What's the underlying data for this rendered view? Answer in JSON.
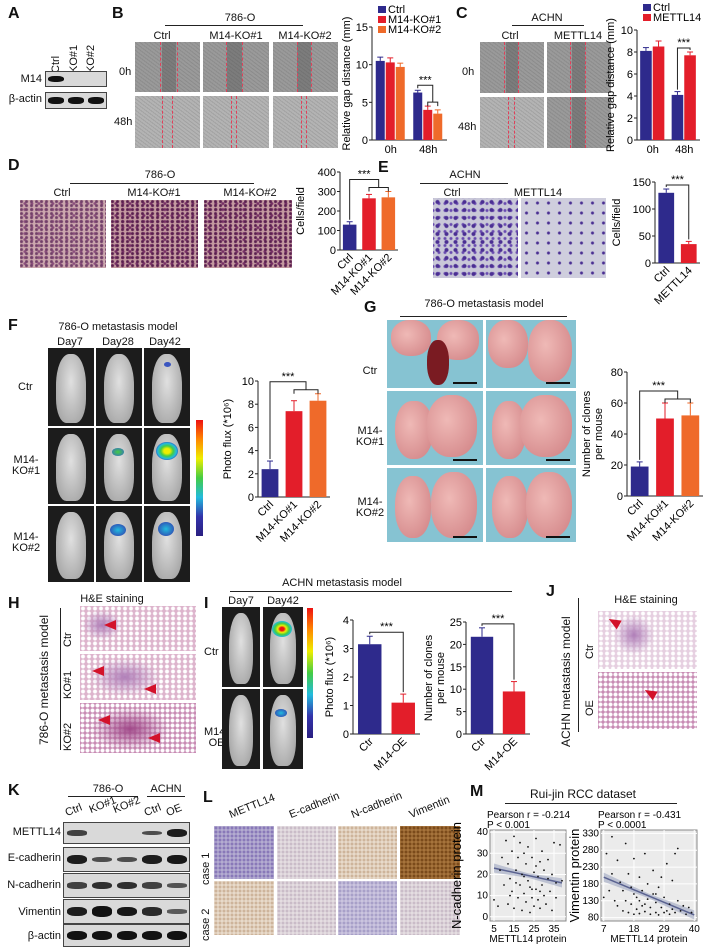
{
  "colors": {
    "ctrl": "#2e2a8c",
    "ko1": "#e31e2a",
    "ko2": "#ef6a2a",
    "wound_line": "#e0405a",
    "arrow": "#d3122a"
  },
  "A": {
    "letter": "A",
    "lanes": [
      "Ctrl",
      "KO#1",
      "KO#2"
    ],
    "rows": [
      {
        "label": "M14",
        "bands": [
          1,
          0,
          0
        ]
      },
      {
        "label": "β-actin",
        "bands": [
          1,
          1,
          1
        ]
      }
    ]
  },
  "B": {
    "letter": "B",
    "cell_line": "786-O",
    "columns": [
      "Ctrl",
      "M14-KO#1",
      "M14-KO#2"
    ],
    "rows": [
      "0h",
      "48h"
    ]
  },
  "C": {
    "letter": "C",
    "cell_line": "ACHN",
    "columns": [
      "Ctrl",
      "METTL14"
    ],
    "rows": [
      "0h",
      "48h"
    ]
  },
  "D": {
    "letter": "D",
    "cell_line": "786-O",
    "columns": [
      "Ctrl",
      "M14-KO#1",
      "M14-KO#2"
    ]
  },
  "E": {
    "letter": "E",
    "cell_line": "ACHN",
    "columns": [
      "Ctrl",
      "METTL14"
    ]
  },
  "F": {
    "letter": "F",
    "title": "786-O  metastasis model",
    "days": [
      "Day7",
      "Day28",
      "Day42"
    ],
    "rows": [
      "Ctr",
      "M14-\nKO#1",
      "M14-\nKO#2"
    ]
  },
  "G": {
    "letter": "G",
    "title": "786-O  metastasis model",
    "rows": [
      "Ctr",
      "M14-\nKO#1",
      "M14-\nKO#2"
    ]
  },
  "H": {
    "letter": "H",
    "title": "H&E staining",
    "side": "786-O  metastasis model",
    "rows": [
      "Ctr",
      "KO#1",
      "KO#2"
    ]
  },
  "I": {
    "letter": "I",
    "title": "ACHN metastasis model",
    "days": [
      "Day7",
      "Day42"
    ],
    "rows": [
      "Ctr",
      "M14-\nOE"
    ]
  },
  "J": {
    "letter": "J",
    "title": "H&E staining",
    "side": "ACHN  metastasis model",
    "rows": [
      "Ctr",
      "OE"
    ]
  },
  "K": {
    "letter": "K",
    "groups": [
      "786-O",
      "ACHN"
    ],
    "lanes": [
      "Ctrl",
      "KO#1",
      "KO#2",
      "Ctrl",
      "OE"
    ],
    "rows": [
      {
        "label": "METTL14",
        "bands": [
          0.6,
          0,
          0,
          0.5,
          0.9
        ]
      },
      {
        "label": "E-cadherin",
        "bands": [
          0.9,
          0.5,
          0.5,
          0.9,
          0.95
        ]
      },
      {
        "label": "N-cadherin",
        "bands": [
          0.6,
          0.75,
          0.75,
          0.6,
          0.45
        ]
      },
      {
        "label": "Vimentin",
        "bands": [
          0.9,
          1,
          0.95,
          0.8,
          0.4
        ]
      },
      {
        "label": "β-actin",
        "bands": [
          1,
          1,
          1,
          1,
          1
        ]
      }
    ]
  },
  "L": {
    "letter": "L",
    "columns": [
      "METTL14",
      "E-cadherin",
      "N-cadherin",
      "Vimentin"
    ],
    "rows": [
      "case 1",
      "case 2"
    ]
  },
  "M": {
    "letter": "M",
    "title": "Rui-jin RCC dataset"
  },
  "chart_data": [
    {
      "id": "B",
      "type": "bar",
      "ylabel": "Relative gap distance (mm)",
      "ylim": [
        0,
        15
      ],
      "yticks": [
        0,
        5,
        10,
        15
      ],
      "categories": [
        "0h",
        "48h"
      ],
      "series": [
        {
          "name": "Ctrl",
          "color": "#2e2a8c",
          "values": [
            10.5,
            6.3
          ],
          "errors": [
            0.5,
            0.3
          ]
        },
        {
          "name": "M14-KO#1",
          "color": "#e31e2a",
          "values": [
            10.3,
            4.0
          ],
          "errors": [
            0.6,
            0.5
          ]
        },
        {
          "name": "M14-KO#2",
          "color": "#ef6a2a",
          "values": [
            9.7,
            3.5
          ],
          "errors": [
            0.5,
            0.5
          ]
        }
      ],
      "comparisons": [
        {
          "label": "***",
          "group": "48h",
          "a": "Ctrl",
          "b": [
            "M14-KO#1",
            "M14-KO#2"
          ]
        }
      ],
      "legend": "top"
    },
    {
      "id": "C",
      "type": "bar",
      "ylabel": "Relative gap distance (mm)",
      "ylim": [
        0,
        10
      ],
      "yticks": [
        0,
        2,
        4,
        6,
        8,
        10
      ],
      "categories": [
        "0h",
        "48h"
      ],
      "series": [
        {
          "name": "Ctrl",
          "color": "#2e2a8c",
          "values": [
            8.1,
            4.1
          ],
          "errors": [
            0.3,
            0.3
          ]
        },
        {
          "name": "METTL14",
          "color": "#e31e2a",
          "values": [
            8.5,
            7.7
          ],
          "errors": [
            0.5,
            0.3
          ]
        }
      ],
      "comparisons": [
        {
          "label": "***",
          "group": "48h",
          "a": "Ctrl",
          "b": [
            "METTL14"
          ]
        }
      ],
      "legend": "top"
    },
    {
      "id": "D",
      "type": "bar",
      "ylabel": "Cells/field",
      "ylim": [
        0,
        400
      ],
      "yticks": [
        0,
        100,
        200,
        300,
        400
      ],
      "categories": [
        "Ctrl",
        "M14-KO#1",
        "M14-KO#2"
      ],
      "values": [
        130,
        265,
        270
      ],
      "errors": [
        15,
        20,
        30
      ],
      "colors": [
        "#2e2a8c",
        "#e31e2a",
        "#ef6a2a"
      ],
      "comparisons": [
        {
          "label": "***",
          "a": "Ctrl",
          "b": [
            "M14-KO#1",
            "M14-KO#2"
          ]
        }
      ]
    },
    {
      "id": "E",
      "type": "bar",
      "ylabel": "Cells/field",
      "ylim": [
        0,
        150
      ],
      "yticks": [
        0,
        50,
        100,
        150
      ],
      "categories": [
        "Ctrl",
        "METTL14"
      ],
      "values": [
        130,
        35
      ],
      "errors": [
        7,
        5
      ],
      "colors": [
        "#2e2a8c",
        "#e31e2a"
      ],
      "comparisons": [
        {
          "label": "***",
          "a": "Ctrl",
          "b": [
            "METTL14"
          ]
        }
      ]
    },
    {
      "id": "F",
      "type": "bar",
      "ylabel": "Photo flux (*10⁶)",
      "ylim": [
        0,
        10
      ],
      "yticks": [
        0,
        2,
        4,
        6,
        8,
        10
      ],
      "categories": [
        "Ctrl",
        "M14-KO#1",
        "M14-KO#2"
      ],
      "values": [
        2.4,
        7.4,
        8.3
      ],
      "errors": [
        0.7,
        0.9,
        0.6
      ],
      "colors": [
        "#2e2a8c",
        "#e31e2a",
        "#ef6a2a"
      ],
      "comparisons": [
        {
          "label": "***",
          "a": "Ctrl",
          "b": [
            "M14-KO#1",
            "M14-KO#2"
          ]
        }
      ]
    },
    {
      "id": "G",
      "type": "bar",
      "ylabel": [
        "Number of clones",
        "per mouse"
      ],
      "ylim": [
        0,
        80
      ],
      "yticks": [
        0,
        20,
        40,
        60,
        80
      ],
      "categories": [
        "Ctrl",
        "M14-KO#1",
        "M14-KO#2"
      ],
      "values": [
        19,
        50,
        52
      ],
      "errors": [
        3,
        10,
        8
      ],
      "colors": [
        "#2e2a8c",
        "#e31e2a",
        "#ef6a2a"
      ],
      "comparisons": [
        {
          "label": "***",
          "a": "Ctrl",
          "b": [
            "M14-KO#1",
            "M14-KO#2"
          ]
        }
      ]
    },
    {
      "id": "I1",
      "type": "bar",
      "ylabel": "Photo flux (*10⁶)",
      "ylim": [
        0,
        4
      ],
      "yticks": [
        0,
        1,
        2,
        3,
        4
      ],
      "categories": [
        "Ctr",
        "M14-OE"
      ],
      "values": [
        3.15,
        1.1
      ],
      "errors": [
        0.28,
        0.3
      ],
      "colors": [
        "#2e2a8c",
        "#e31e2a"
      ],
      "comparisons": [
        {
          "label": "***",
          "a": "Ctr",
          "b": [
            "M14-OE"
          ]
        }
      ]
    },
    {
      "id": "I2",
      "type": "bar",
      "ylabel": [
        "Number of clones",
        "per mouse"
      ],
      "ylim": [
        0,
        25
      ],
      "yticks": [
        0,
        5,
        10,
        15,
        20,
        25
      ],
      "categories": [
        "Ctr",
        "M14-OE"
      ],
      "values": [
        21.7,
        9.5
      ],
      "errors": [
        2,
        2.2
      ],
      "colors": [
        "#2e2a8c",
        "#e31e2a"
      ],
      "comparisons": [
        {
          "label": "***",
          "a": "Ctr",
          "b": [
            "M14-OE"
          ]
        }
      ]
    },
    {
      "id": "M1",
      "type": "scatter",
      "xlabel": "METTL14 protein",
      "ylabel": "N-cadherin protein",
      "annotation": [
        "Pearson r = -0.214",
        "P < 0.001"
      ],
      "xlim": [
        3,
        41
      ],
      "ylim": [
        -2,
        41
      ],
      "xticks": [
        5,
        15,
        25,
        35
      ],
      "yticks": [
        0,
        10,
        20,
        30,
        40
      ],
      "trend": {
        "x": [
          5,
          39
        ],
        "y": [
          23,
          16
        ]
      },
      "points": [
        [
          5,
          8
        ],
        [
          7,
          5
        ],
        [
          8,
          22
        ],
        [
          9,
          28
        ],
        [
          10,
          15
        ],
        [
          11,
          36
        ],
        [
          12,
          25
        ],
        [
          12,
          6
        ],
        [
          13,
          18
        ],
        [
          14,
          31
        ],
        [
          14,
          12
        ],
        [
          15,
          38
        ],
        [
          15,
          4
        ],
        [
          16,
          22
        ],
        [
          17,
          28
        ],
        [
          17,
          9
        ],
        [
          18,
          35
        ],
        [
          18,
          15
        ],
        [
          19,
          20
        ],
        [
          19,
          3
        ],
        [
          20,
          30
        ],
        [
          20,
          11
        ],
        [
          21,
          25
        ],
        [
          21,
          7
        ],
        [
          22,
          33
        ],
        [
          22,
          17
        ],
        [
          23,
          14
        ],
        [
          23,
          2
        ],
        [
          24,
          28
        ],
        [
          24,
          9
        ],
        [
          25,
          21
        ],
        [
          25,
          5
        ],
        [
          26,
          37
        ],
        [
          26,
          13
        ],
        [
          27,
          19
        ],
        [
          27,
          8
        ],
        [
          28,
          26
        ],
        [
          28,
          4
        ],
        [
          29,
          15
        ],
        [
          29,
          31
        ],
        [
          30,
          10
        ],
        [
          30,
          22
        ],
        [
          31,
          6
        ],
        [
          32,
          18
        ],
        [
          32,
          27
        ],
        [
          33,
          12
        ],
        [
          34,
          3
        ],
        [
          34,
          20
        ],
        [
          35,
          35
        ],
        [
          36,
          9
        ],
        [
          36,
          16
        ],
        [
          38,
          34
        ],
        [
          39,
          17
        ],
        [
          16,
          16
        ],
        [
          20,
          19
        ],
        [
          24,
          13
        ],
        [
          28,
          12
        ],
        [
          13,
          10
        ],
        [
          26,
          24
        ]
      ]
    },
    {
      "id": "M2",
      "type": "scatter",
      "xlabel": "METTL14 protein",
      "ylabel": "Vimentin protein",
      "annotation": [
        "Pearson r = -0.431",
        "P < 0.0001"
      ],
      "xlim": [
        6,
        41
      ],
      "ylim": [
        70,
        340
      ],
      "xticks": [
        7,
        18,
        29,
        40
      ],
      "yticks": [
        80,
        130,
        180,
        230,
        280,
        330
      ],
      "trend": {
        "x": [
          7,
          40
        ],
        "y": [
          200,
          88
        ]
      },
      "points": [
        [
          7,
          140
        ],
        [
          8,
          270
        ],
        [
          9,
          160
        ],
        [
          10,
          320
        ],
        [
          10,
          210
        ],
        [
          11,
          130
        ],
        [
          12,
          250
        ],
        [
          13,
          185
        ],
        [
          14,
          100
        ],
        [
          14,
          160
        ],
        [
          15,
          300
        ],
        [
          15,
          130
        ],
        [
          16,
          210
        ],
        [
          16,
          95
        ],
        [
          17,
          170
        ],
        [
          17,
          120
        ],
        [
          18,
          90
        ],
        [
          18,
          255
        ],
        [
          19,
          140
        ],
        [
          19,
          105
        ],
        [
          20,
          200
        ],
        [
          20,
          92
        ],
        [
          21,
          160
        ],
        [
          21,
          115
        ],
        [
          22,
          270
        ],
        [
          22,
          98
        ],
        [
          23,
          135
        ],
        [
          23,
          180
        ],
        [
          24,
          110
        ],
        [
          24,
          90
        ],
        [
          25,
          150
        ],
        [
          25,
          220
        ],
        [
          26,
          95
        ],
        [
          26,
          125
        ],
        [
          27,
          170
        ],
        [
          27,
          88
        ],
        [
          28,
          110
        ],
        [
          28,
          200
        ],
        [
          29,
          95
        ],
        [
          29,
          140
        ],
        [
          30,
          240
        ],
        [
          30,
          100
        ],
        [
          31,
          120
        ],
        [
          31,
          90
        ],
        [
          32,
          190
        ],
        [
          32,
          105
        ],
        [
          33,
          270
        ],
        [
          33,
          95
        ],
        [
          34,
          130
        ],
        [
          34,
          285
        ],
        [
          35,
          100
        ],
        [
          36,
          115
        ],
        [
          37,
          90
        ],
        [
          38,
          110
        ],
        [
          39,
          95
        ],
        [
          12,
          115
        ],
        [
          20,
          130
        ],
        [
          26,
          150
        ],
        [
          22,
          120
        ],
        [
          18,
          150
        ]
      ]
    }
  ]
}
